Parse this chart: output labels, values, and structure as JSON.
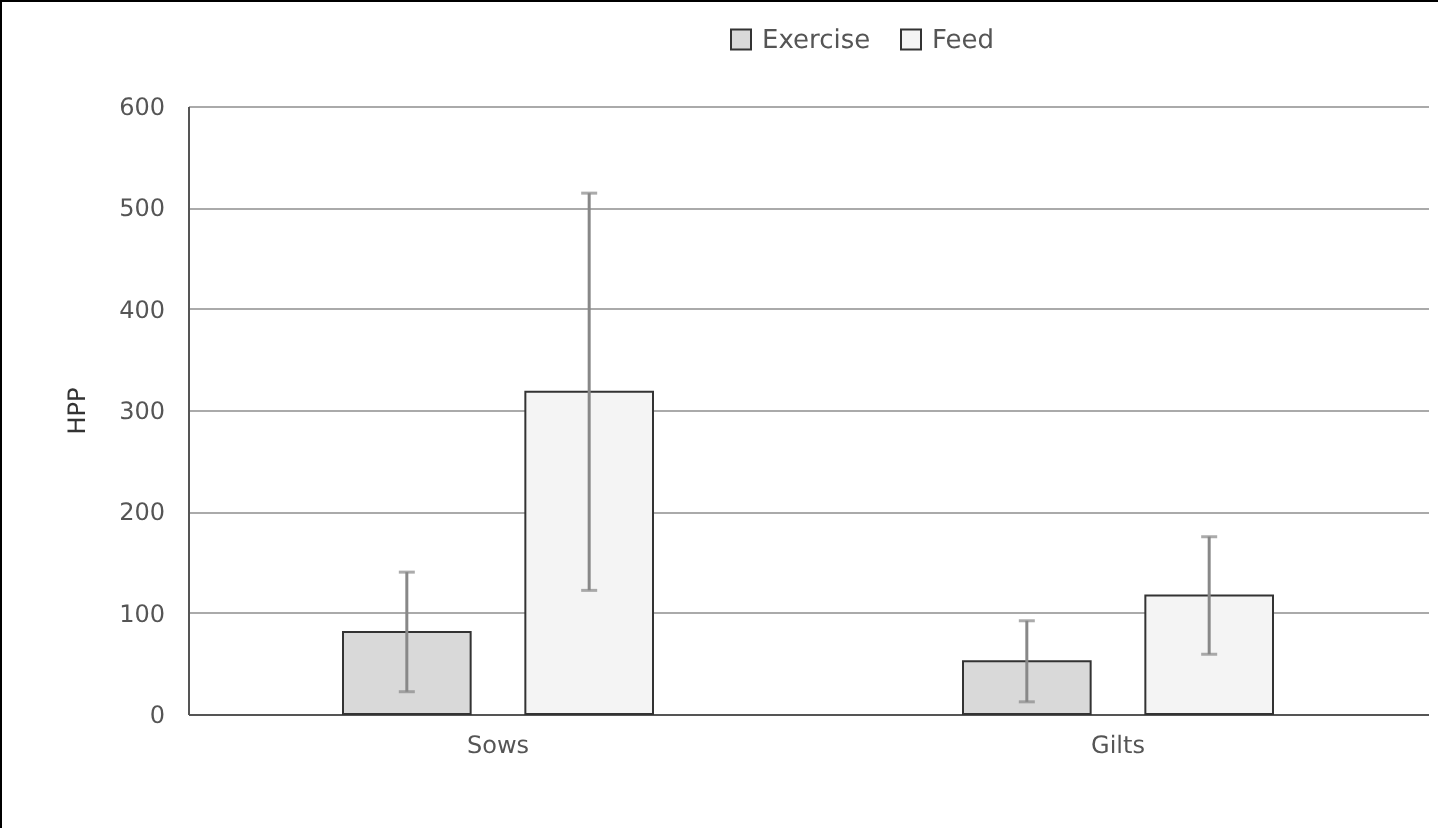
{
  "chart_data": {
    "type": "bar",
    "ylabel": "HPP",
    "categories": [
      "Sows",
      "Gilts"
    ],
    "series": [
      {
        "name": "Exercise",
        "color": "#d9d9d9",
        "values": [
          81,
          52
        ],
        "errors": [
          59,
          40
        ]
      },
      {
        "name": "Feed",
        "color": "#f4f4f4",
        "values": [
          318,
          117
        ],
        "errors": [
          196,
          58
        ]
      }
    ],
    "ylim": [
      0,
      600
    ],
    "yticks": [
      0,
      100,
      200,
      300,
      400,
      500,
      600
    ],
    "grid": "y",
    "legend": "top"
  }
}
